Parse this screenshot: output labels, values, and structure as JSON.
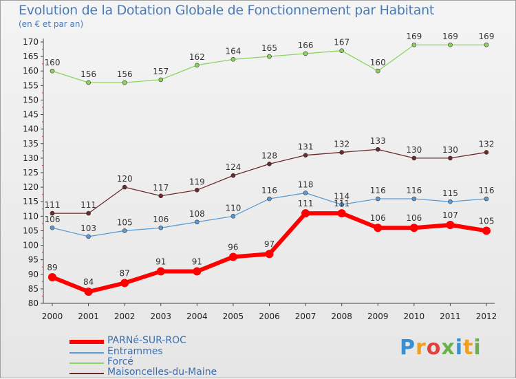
{
  "chart_data": {
    "type": "line",
    "title": "Evolution de la Dotation Globale de Fonctionnement par Habitant",
    "subtitle": "(en € et par an)",
    "categories": [
      "2000",
      "2001",
      "2002",
      "2003",
      "2004",
      "2005",
      "2006",
      "2007",
      "2008",
      "2009",
      "2010",
      "2011",
      "2012"
    ],
    "ylim": [
      80,
      170
    ],
    "yticks": [
      80,
      85,
      90,
      95,
      100,
      105,
      110,
      115,
      120,
      125,
      130,
      135,
      140,
      145,
      150,
      155,
      160,
      165,
      170
    ],
    "grid": false,
    "series": [
      {
        "name": "PARNé-SUR-ROC",
        "color": "#ff0000",
        "values": [
          89,
          84,
          87,
          91,
          91,
          96,
          97,
          111,
          111,
          106,
          106,
          107,
          105
        ]
      },
      {
        "name": "Entrammes",
        "color": "#5b9bd5",
        "values": [
          106,
          103,
          105,
          106,
          108,
          110,
          116,
          118,
          114,
          116,
          116,
          115,
          116
        ]
      },
      {
        "name": "Forcé",
        "color": "#8dd35f",
        "values": [
          160,
          156,
          156,
          157,
          162,
          164,
          165,
          166,
          167,
          160,
          169,
          169,
          169
        ]
      },
      {
        "name": "Maisoncelles-du-Maine",
        "color": "#6b2a2a",
        "values": [
          111,
          111,
          120,
          117,
          119,
          124,
          128,
          131,
          132,
          133,
          130,
          130,
          132
        ]
      }
    ]
  },
  "logo": {
    "text": "Proxiti"
  }
}
